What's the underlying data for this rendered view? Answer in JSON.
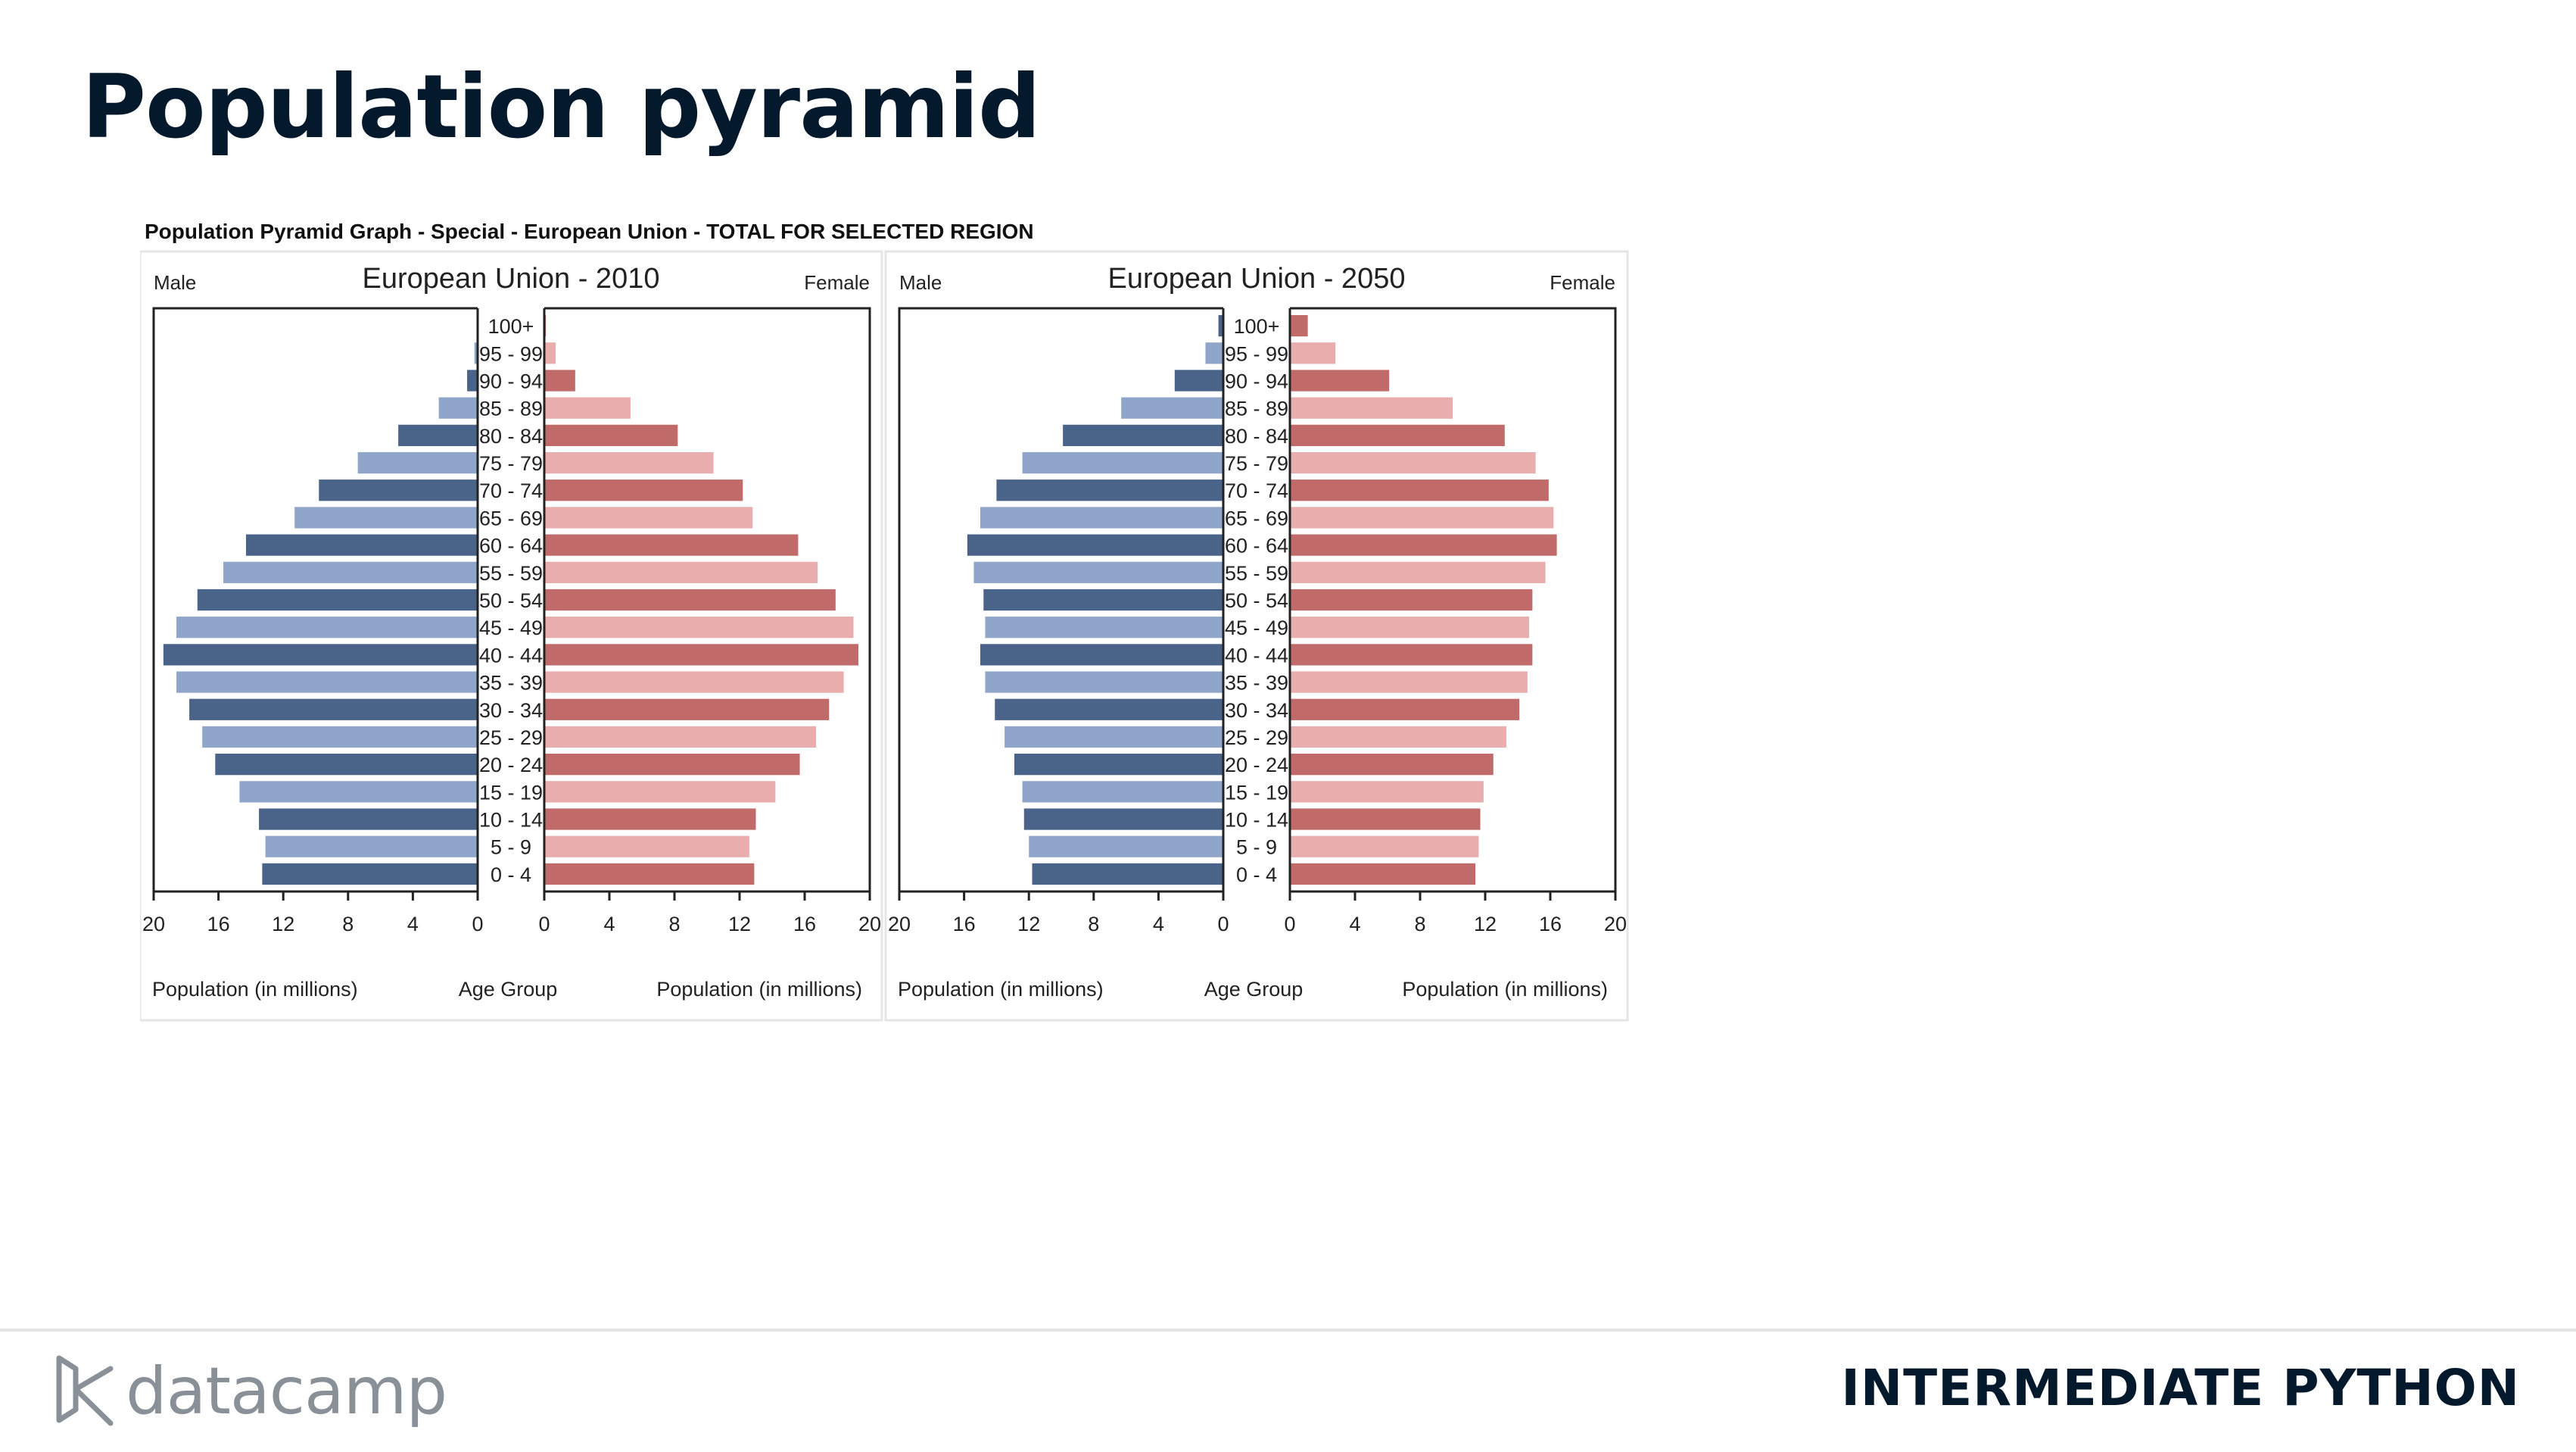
{
  "slide": {
    "title": "Population pyramid",
    "course": "INTERMEDIATE PYTHON",
    "logo_text": "datacamp"
  },
  "chart_data": {
    "type": "bar",
    "header": "Population Pyramid Graph - Special - European Union - TOTAL FOR SELECTED REGION",
    "age_groups": [
      "100+",
      "95 - 99",
      "90 - 94",
      "85 - 89",
      "80 - 84",
      "75 - 79",
      "70 - 74",
      "65 - 69",
      "60 - 64",
      "55 - 59",
      "50 - 54",
      "45 - 49",
      "40 - 44",
      "35 - 39",
      "30 - 34",
      "25 - 29",
      "20 - 24",
      "15 - 19",
      "10 - 14",
      "5 - 9",
      "0 - 4"
    ],
    "ticks": [
      20,
      16,
      12,
      8,
      4,
      0
    ],
    "xlim": [
      0,
      20
    ],
    "male_label": "Male",
    "female_label": "Female",
    "xlabel": "Population (in millions)",
    "age_axis_label": "Age Group",
    "colors": {
      "male_dark": "#4a6389",
      "male_light": "#8fa6ca",
      "female_dark": "#c06a69",
      "female_light": "#e8adac",
      "frame": "#222222"
    },
    "panels": [
      {
        "title": "European Union - 2010",
        "male": [
          0.05,
          0.2,
          0.65,
          2.4,
          4.9,
          7.4,
          9.8,
          11.3,
          14.3,
          15.7,
          17.3,
          18.6,
          19.4,
          18.6,
          17.8,
          17.0,
          16.2,
          14.7,
          13.5,
          13.1,
          13.3
        ],
        "female": [
          0.1,
          0.7,
          1.9,
          5.3,
          8.2,
          10.4,
          12.2,
          12.8,
          15.6,
          16.8,
          17.9,
          19.0,
          19.3,
          18.4,
          17.5,
          16.7,
          15.7,
          14.2,
          13.0,
          12.6,
          12.9
        ]
      },
      {
        "title": "European Union - 2050",
        "male": [
          0.3,
          1.1,
          3.0,
          6.3,
          9.9,
          12.4,
          14.0,
          15.0,
          15.8,
          15.4,
          14.8,
          14.7,
          15.0,
          14.7,
          14.1,
          13.5,
          12.9,
          12.4,
          12.3,
          12.0,
          11.8
        ],
        "female": [
          1.1,
          2.8,
          6.1,
          10.0,
          13.2,
          15.1,
          15.9,
          16.2,
          16.4,
          15.7,
          14.9,
          14.7,
          14.9,
          14.6,
          14.1,
          13.3,
          12.5,
          11.9,
          11.7,
          11.6,
          11.4
        ]
      }
    ]
  }
}
